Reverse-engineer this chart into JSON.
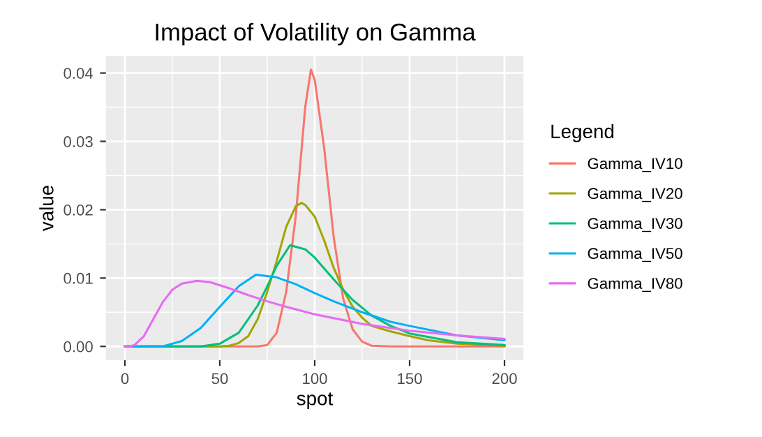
{
  "chart_data": {
    "type": "line",
    "title": "Impact of Volatility on Gamma",
    "xlabel": "spot",
    "ylabel": "value",
    "legend_title": "Legend",
    "legend": "right",
    "grid": true,
    "xlim": [
      -10,
      210
    ],
    "xticks": [
      0,
      50,
      100,
      150,
      200
    ],
    "ylim": [
      -0.002,
      0.0425
    ],
    "yticks": [
      {
        "value": 0,
        "label": "0.00"
      },
      {
        "value": 0.01,
        "label": "0.01"
      },
      {
        "value": 0.02,
        "label": "0.02"
      },
      {
        "value": 0.03,
        "label": "0.03"
      },
      {
        "value": 0.04,
        "label": "0.04"
      }
    ],
    "series": [
      {
        "name": "Gamma_IV10",
        "color": "#f8766d",
        "x": [
          0,
          70,
          75,
          80,
          85,
          90,
          95,
          98,
          100,
          105,
          110,
          115,
          120,
          125,
          130,
          140,
          200
        ],
        "values": [
          0,
          0,
          0.0002,
          0.002,
          0.008,
          0.019,
          0.035,
          0.0405,
          0.039,
          0.029,
          0.016,
          0.007,
          0.0025,
          0.0007,
          0.0001,
          0,
          0
        ]
      },
      {
        "name": "Gamma_IV20",
        "color": "#a3a500",
        "x": [
          0,
          50,
          55,
          60,
          65,
          70,
          75,
          80,
          85,
          90,
          93,
          95,
          100,
          105,
          110,
          115,
          120,
          125,
          130,
          140,
          150,
          160,
          175,
          200
        ],
        "values": [
          0,
          0,
          0.0001,
          0.0005,
          0.0015,
          0.004,
          0.008,
          0.0125,
          0.0175,
          0.0205,
          0.021,
          0.0207,
          0.019,
          0.0155,
          0.0115,
          0.0083,
          0.0058,
          0.0042,
          0.003,
          0.0022,
          0.0015,
          0.0009,
          0.0004,
          0.0001
        ]
      },
      {
        "name": "Gamma_IV30",
        "color": "#00bf7d",
        "x": [
          0,
          40,
          50,
          60,
          70,
          75,
          80,
          87,
          95,
          100,
          110,
          120,
          130,
          140,
          150,
          175,
          200
        ],
        "values": [
          0,
          0,
          0.0004,
          0.002,
          0.006,
          0.0088,
          0.0118,
          0.0148,
          0.0142,
          0.013,
          0.0098,
          0.0068,
          0.0045,
          0.003,
          0.0019,
          0.0006,
          0.0002
        ]
      },
      {
        "name": "Gamma_IV50",
        "color": "#00b0f6",
        "x": [
          0,
          20,
          30,
          40,
          50,
          60,
          69,
          80,
          90,
          100,
          110,
          125,
          140,
          150,
          175,
          200
        ],
        "values": [
          0,
          0,
          0.0008,
          0.0027,
          0.0058,
          0.0088,
          0.0105,
          0.0101,
          0.0091,
          0.0078,
          0.0066,
          0.005,
          0.0036,
          0.003,
          0.0016,
          0.0009
        ]
      },
      {
        "name": "Gamma_IV80",
        "color": "#e76bf3",
        "x": [
          0,
          3,
          5,
          10,
          15,
          20,
          25,
          30,
          38,
          45,
          55,
          65,
          75,
          85,
          100,
          125,
          150,
          175,
          200
        ],
        "values": [
          0,
          0,
          0.0002,
          0.0015,
          0.004,
          0.0065,
          0.0083,
          0.0092,
          0.0096,
          0.0094,
          0.0085,
          0.0075,
          0.0066,
          0.0058,
          0.0047,
          0.0033,
          0.0023,
          0.0016,
          0.0011
        ]
      }
    ]
  }
}
